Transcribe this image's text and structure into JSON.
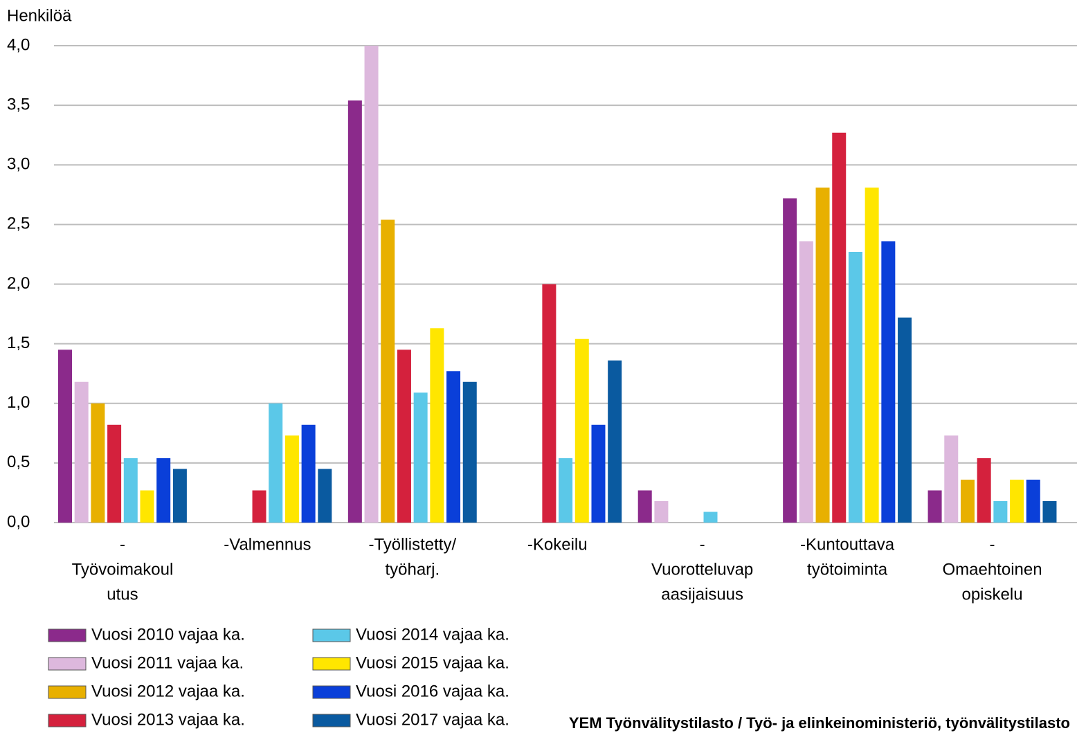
{
  "chart_data": {
    "type": "bar",
    "y_label": "Henkilöä",
    "source": "YEM Työnvälitystilasto / Työ- ja elinkeinoministeriö, työnvälitystilasto",
    "categories": [
      [
        "-",
        "Työvoimakoul",
        "utus"
      ],
      [
        "-Valmennus"
      ],
      [
        "-Työllistetty/",
        "työharj."
      ],
      [
        "-Kokeilu"
      ],
      [
        "-",
        "Vuorotteluvap",
        "aasijaisuus"
      ],
      [
        "-Kuntouttava",
        "työtoiminta"
      ],
      [
        "-",
        "Omaehtoinen",
        "opiskelu"
      ]
    ],
    "series": [
      {
        "name": "Vuosi 2010 vajaa ka.",
        "color": "#8b2a8b",
        "values": [
          1.45,
          0,
          3.54,
          0,
          0.27,
          2.72,
          0.27
        ]
      },
      {
        "name": "Vuosi 2011 vajaa ka.",
        "color": "#ddb8dd",
        "values": [
          1.18,
          0,
          4.0,
          0,
          0.18,
          2.36,
          0.73
        ]
      },
      {
        "name": "Vuosi 2012 vajaa ka.",
        "color": "#e8b000",
        "values": [
          1.0,
          0,
          2.54,
          0,
          0,
          2.81,
          0.36
        ]
      },
      {
        "name": "Vuosi 2013 vajaa ka.",
        "color": "#d4213d",
        "values": [
          0.82,
          0.27,
          1.45,
          2.0,
          0,
          3.27,
          0.54
        ]
      },
      {
        "name": "Vuosi 2014 vajaa ka.",
        "color": "#5bc8e8",
        "values": [
          0.54,
          1.0,
          1.09,
          0.54,
          0.09,
          2.27,
          0.18
        ]
      },
      {
        "name": "Vuosi 2015 vajaa ka.",
        "color": "#ffe600",
        "values": [
          0.27,
          0.73,
          1.63,
          1.54,
          0,
          2.81,
          0.36
        ]
      },
      {
        "name": "Vuosi 2016 vajaa ka.",
        "color": "#0a3fd9",
        "values": [
          0.54,
          0.82,
          1.27,
          0.82,
          0,
          2.36,
          0.36
        ]
      },
      {
        "name": "Vuosi 2017 vajaa ka.",
        "color": "#0a5aa0",
        "values": [
          0.45,
          0.45,
          1.18,
          1.36,
          0,
          1.72,
          0.18
        ]
      }
    ],
    "ylim": [
      0,
      4
    ],
    "yticks": [
      {
        "value": 0,
        "label": "0,0"
      },
      {
        "value": 0.5,
        "label": "0,5"
      },
      {
        "value": 1,
        "label": "1,0"
      },
      {
        "value": 1.5,
        "label": "1,5"
      },
      {
        "value": 2,
        "label": "2,0"
      },
      {
        "value": 2.5,
        "label": "2,5"
      },
      {
        "value": 3,
        "label": "3,0"
      },
      {
        "value": 3.5,
        "label": "3,5"
      },
      {
        "value": 4,
        "label": "4,0"
      }
    ],
    "grid": true
  }
}
